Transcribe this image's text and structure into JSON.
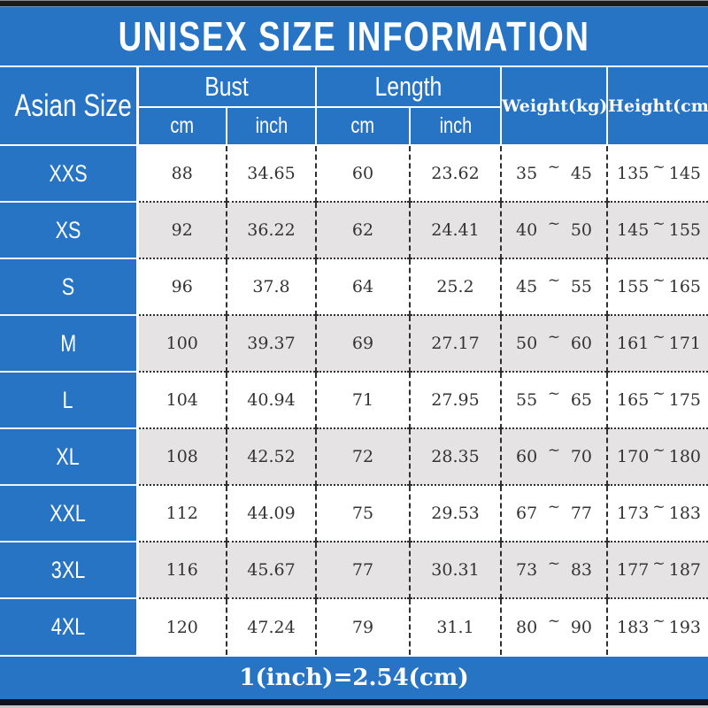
{
  "title": "UNISEX SIZE INFORMATION",
  "header": {
    "asian_size": "Asian Size",
    "bust": "Bust",
    "length": "Length",
    "weight": "Weight(kg)",
    "height": "Height(cm)",
    "cm": "cm",
    "inch": "inch",
    "cm2": "cm",
    "inch2": "inch"
  },
  "tilde": "~",
  "rows": [
    {
      "size": "XXS",
      "bust_cm": "88",
      "bust_inch": "34.65",
      "length_cm": "60",
      "length_inch": "23.62",
      "weight_min": "35",
      "weight_max": "45",
      "height_min": "135",
      "height_max": "145"
    },
    {
      "size": "XS",
      "bust_cm": "92",
      "bust_inch": "36.22",
      "length_cm": "62",
      "length_inch": "24.41",
      "weight_min": "40",
      "weight_max": "50",
      "height_min": "145",
      "height_max": "155"
    },
    {
      "size": "S",
      "bust_cm": "96",
      "bust_inch": "37.8",
      "length_cm": "64",
      "length_inch": "25.2",
      "weight_min": "45",
      "weight_max": "55",
      "height_min": "155",
      "height_max": "165"
    },
    {
      "size": "M",
      "bust_cm": "100",
      "bust_inch": "39.37",
      "length_cm": "69",
      "length_inch": "27.17",
      "weight_min": "50",
      "weight_max": "60",
      "height_min": "161",
      "height_max": "171"
    },
    {
      "size": "L",
      "bust_cm": "104",
      "bust_inch": "40.94",
      "length_cm": "71",
      "length_inch": "27.95",
      "weight_min": "55",
      "weight_max": "65",
      "height_min": "165",
      "height_max": "175"
    },
    {
      "size": "XL",
      "bust_cm": "108",
      "bust_inch": "42.52",
      "length_cm": "72",
      "length_inch": "28.35",
      "weight_min": "60",
      "weight_max": "70",
      "height_min": "170",
      "height_max": "180"
    },
    {
      "size": "XXL",
      "bust_cm": "112",
      "bust_inch": "44.09",
      "length_cm": "75",
      "length_inch": "29.53",
      "weight_min": "67",
      "weight_max": "77",
      "height_min": "173",
      "height_max": "183"
    },
    {
      "size": "3XL",
      "bust_cm": "116",
      "bust_inch": "45.67",
      "length_cm": "77",
      "length_inch": "30.31",
      "weight_min": "73",
      "weight_max": "83",
      "height_min": "177",
      "height_max": "187"
    },
    {
      "size": "4XL",
      "bust_cm": "120",
      "bust_inch": "47.24",
      "length_cm": "79",
      "length_inch": "31.1",
      "weight_min": "80",
      "weight_max": "90",
      "height_min": "183",
      "height_max": "193"
    }
  ],
  "footer": "1(inch)=2.54(cm)",
  "colors": {
    "accent_blue": "#2774c4",
    "row_alt_gray": "#e5e3e4",
    "grid_dark": "#2f2f2f",
    "text_dark": "#333333",
    "bar_black": "#1c1c1c"
  }
}
